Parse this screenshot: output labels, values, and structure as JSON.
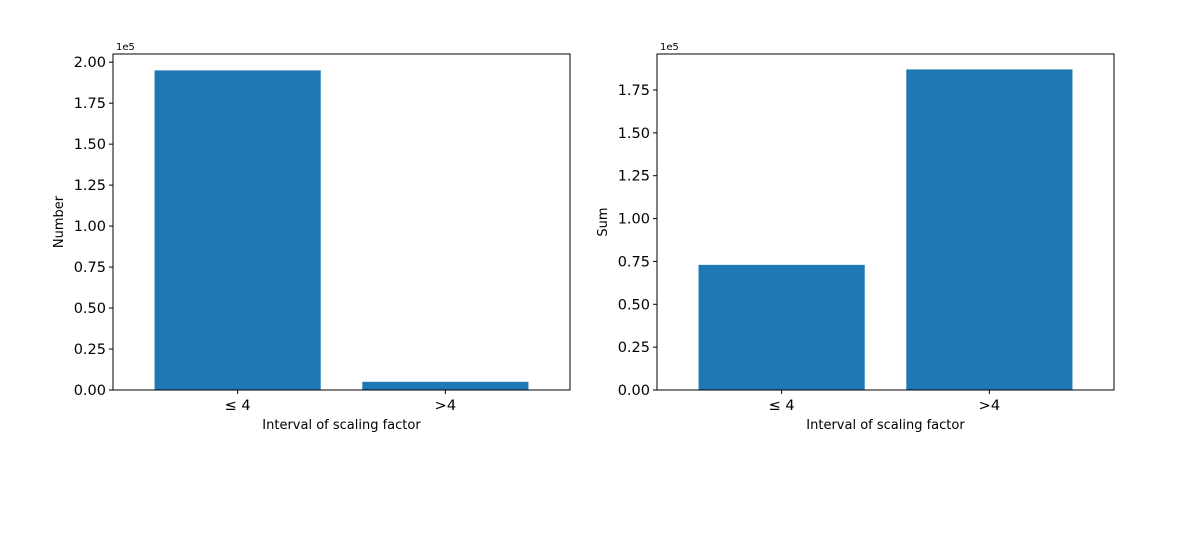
{
  "figure": {
    "background": "#ffffff"
  },
  "chart_data": [
    {
      "type": "bar",
      "categories": [
        "≤ 4",
        ">4"
      ],
      "values": [
        195000,
        5000
      ],
      "xlabel": "Interval of scaling factor",
      "ylabel": "Number",
      "ylim": [
        0,
        205000
      ],
      "yticks": [
        0,
        25000,
        50000,
        75000,
        100000,
        125000,
        150000,
        175000,
        200000
      ],
      "ytick_labels": [
        "0.00",
        "0.25",
        "0.50",
        "0.75",
        "1.00",
        "1.25",
        "1.50",
        "1.75",
        "2.00"
      ],
      "offset_text": "1e5",
      "bar_color": "#1f77b4",
      "grid": false
    },
    {
      "type": "bar",
      "categories": [
        "≤ 4",
        ">4"
      ],
      "values": [
        73000,
        187000
      ],
      "xlabel": "Interval of scaling factor",
      "ylabel": "Sum",
      "ylim": [
        0,
        196000
      ],
      "yticks": [
        0,
        25000,
        50000,
        75000,
        100000,
        125000,
        150000,
        175000
      ],
      "ytick_labels": [
        "0.00",
        "0.25",
        "0.50",
        "0.75",
        "1.00",
        "1.25",
        "1.50",
        "1.75"
      ],
      "offset_text": "1e5",
      "bar_color": "#1f77b4",
      "grid": false
    }
  ]
}
